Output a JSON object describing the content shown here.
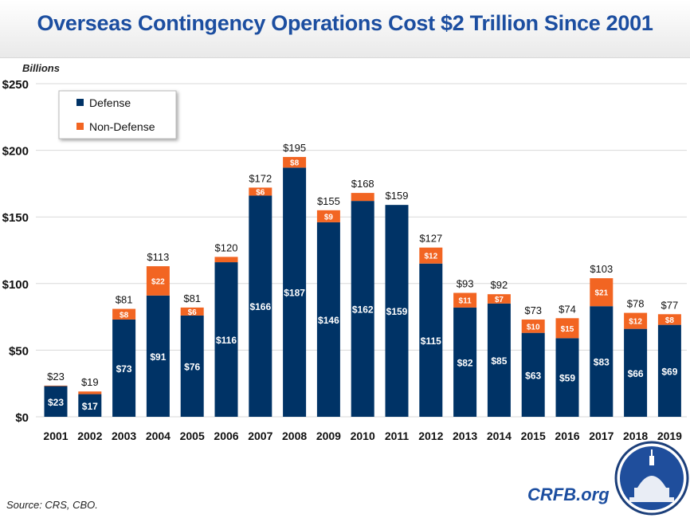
{
  "title": "Overseas Contingency Operations Cost $2 Trillion Since 2001",
  "source": "Source: CRS, CBO.",
  "brand": "CRFB.org",
  "logo": "capitol-dome-seal",
  "chart_data": {
    "type": "bar",
    "stacked": true,
    "ylabel": "Billions",
    "ylim": [
      0,
      250
    ],
    "yticks": [
      0,
      50,
      100,
      150,
      200,
      250
    ],
    "ytick_labels": [
      "$0",
      "$50",
      "$100",
      "$150",
      "$200",
      "$250"
    ],
    "grid": true,
    "legend_position": "top-left",
    "categories": [
      "2001",
      "2002",
      "2003",
      "2004",
      "2005",
      "2006",
      "2007",
      "2008",
      "2009",
      "2010",
      "2011",
      "2012",
      "2013",
      "2014",
      "2015",
      "2016",
      "2017",
      "2018",
      "2019"
    ],
    "series": [
      {
        "name": "Defense",
        "color": "#003366",
        "values": [
          23,
          17,
          73,
          91,
          76,
          116,
          166,
          187,
          146,
          162,
          159,
          115,
          82,
          85,
          63,
          59,
          83,
          66,
          69
        ],
        "labels": [
          "$23",
          "$17",
          "$73",
          "$91",
          "$76",
          "$116",
          "$166",
          "$187",
          "$146",
          "$162",
          "$159",
          "$115",
          "$82",
          "$85",
          "$63",
          "$59",
          "$83",
          "$66",
          "$69"
        ]
      },
      {
        "name": "Non-Defense",
        "color": "#f26522",
        "values": [
          0.4,
          2,
          8,
          22,
          6,
          4,
          6,
          8,
          9,
          6,
          0,
          12,
          11,
          7,
          10,
          15,
          21,
          12,
          8
        ],
        "labels": [
          "",
          "",
          "$8",
          "$22",
          "$6",
          "",
          "$6",
          "$8",
          "$9",
          "",
          "",
          "$12",
          "$11",
          "$7",
          "$10",
          "$15",
          "$21",
          "$12",
          "$8"
        ]
      }
    ],
    "totals": [
      23,
      19,
      81,
      113,
      81,
      120,
      172,
      195,
      155,
      168,
      159,
      127,
      93,
      92,
      73,
      74,
      103,
      78,
      77
    ],
    "total_labels": [
      "$23",
      "$19",
      "$81",
      "$113",
      "$81",
      "$120",
      "$172",
      "$195",
      "$155",
      "$168",
      "$159",
      "$127",
      "$93",
      "$92",
      "$73",
      "$74",
      "$103",
      "$78",
      "$77"
    ]
  }
}
